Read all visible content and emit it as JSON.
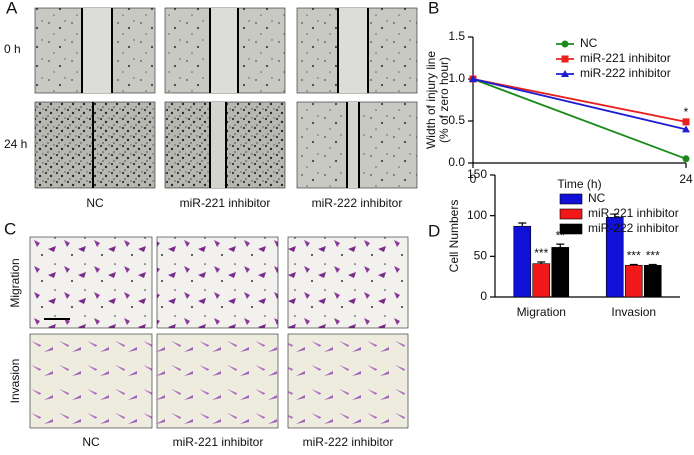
{
  "panel_labels": [
    "A",
    "B",
    "C",
    "D"
  ],
  "panel_a": {
    "rows": [
      "0 h",
      "24 h"
    ],
    "columns": [
      "NC",
      "miR-221 inhibitor",
      "miR-222 inhibitor"
    ]
  },
  "panel_c": {
    "rows": [
      "Migration",
      "Invasion"
    ],
    "columns": [
      "NC",
      "miR-221 inhibitor",
      "miR-222 inhibitor"
    ]
  },
  "chart_data": [
    {
      "type": "line",
      "xlabel": "Time (h)",
      "ylabel": [
        "Width of injury line",
        "(% of zero hour)"
      ],
      "x": [
        0,
        24
      ],
      "xlim": [
        0,
        24
      ],
      "xticks": [
        0,
        24
      ],
      "ylim": [
        0,
        1.5
      ],
      "yticks": [
        {
          "value": 0,
          "label": "0.0"
        },
        0.5,
        {
          "value": 1,
          "label": "1.0"
        },
        1.5
      ],
      "legend": "upper right",
      "series": [
        {
          "name": "NC",
          "color": "#1a8a1a",
          "marker": "circle",
          "values": [
            1,
            0.05
          ]
        },
        {
          "name": "miR-221 inhibitor",
          "color": "#e8201e",
          "marker": "square",
          "values": [
            1,
            0.49
          ]
        },
        {
          "name": "miR-222 inhibitor",
          "color": "#1c1cd0",
          "marker": "triangle",
          "values": [
            1,
            0.4
          ]
        }
      ],
      "annotations": [
        {
          "text": "*",
          "x": 24,
          "y": 0.6
        }
      ]
    },
    {
      "type": "bar",
      "ylabel": "Cell Numbers",
      "categories": [
        "Migration",
        "Invasion"
      ],
      "ylim": [
        0,
        150
      ],
      "yticks": [
        0,
        50,
        100,
        150
      ],
      "legend": "top",
      "series": [
        {
          "name": "NC",
          "color": "#1010d8",
          "values": [
            87,
            98
          ],
          "errors": [
            4,
            4
          ]
        },
        {
          "name": "miR-221 inhibitor",
          "color": "#f01818",
          "values": [
            41,
            39
          ],
          "errors": [
            2,
            1
          ]
        },
        {
          "name": "miR-222 inhibitor",
          "color": "#000000",
          "values": [
            61,
            39
          ],
          "errors": [
            4,
            1
          ]
        }
      ],
      "annotations": [
        {
          "text": "***",
          "series": 1,
          "category": 0
        },
        {
          "text": "**",
          "series": 2,
          "category": 0
        },
        {
          "text": "***",
          "series": 1,
          "category": 1
        },
        {
          "text": "***",
          "series": 2,
          "category": 1
        }
      ]
    }
  ]
}
